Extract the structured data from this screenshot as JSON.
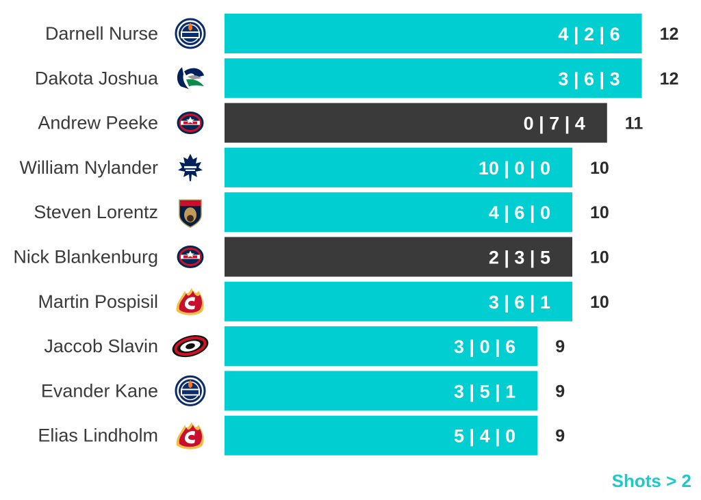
{
  "chart_data": {
    "type": "bar",
    "orientation": "horizontal",
    "categories": [
      "Darnell Nurse",
      "Dakota Joshua",
      "Andrew Peeke",
      "William Nylander",
      "Steven Lorentz",
      "Nick Blankenburg",
      "Martin Pospisil",
      "Jaccob Slavin",
      "Evander Kane",
      "Elias Lindholm"
    ],
    "teams": [
      "Oilers",
      "Canucks",
      "Blue Jackets",
      "Maple Leafs",
      "Panthers",
      "Blue Jackets",
      "Flames",
      "Hurricanes",
      "Oilers",
      "Flames"
    ],
    "team_icons": [
      "oilers-logo-icon",
      "canucks-logo-icon",
      "blue-jackets-logo-icon",
      "maple-leafs-logo-icon",
      "panthers-logo-icon",
      "blue-jackets-logo-icon",
      "flames-logo-icon",
      "hurricanes-logo-icon",
      "oilers-logo-icon",
      "flames-logo-icon"
    ],
    "values": [
      12,
      12,
      11,
      10,
      10,
      10,
      10,
      9,
      9,
      9
    ],
    "breakdown_labels": [
      "4 | 2 | 6",
      "3 | 6 | 3",
      "0 | 7 | 4",
      "10 | 0 | 0",
      "4 | 6 | 0",
      "2 | 3 | 5",
      "3 | 6 | 1",
      "3 | 0 | 6",
      "3 | 5 | 1",
      "5 | 4 | 0"
    ],
    "highlighted": [
      false,
      false,
      true,
      false,
      false,
      true,
      false,
      false,
      false,
      false
    ],
    "colors": {
      "default": "#00CED1",
      "highlight": "#3A3A3A"
    },
    "title": "",
    "xlabel": "",
    "ylabel": "",
    "grid": false
  },
  "footer": {
    "text": "Shots > 2"
  }
}
